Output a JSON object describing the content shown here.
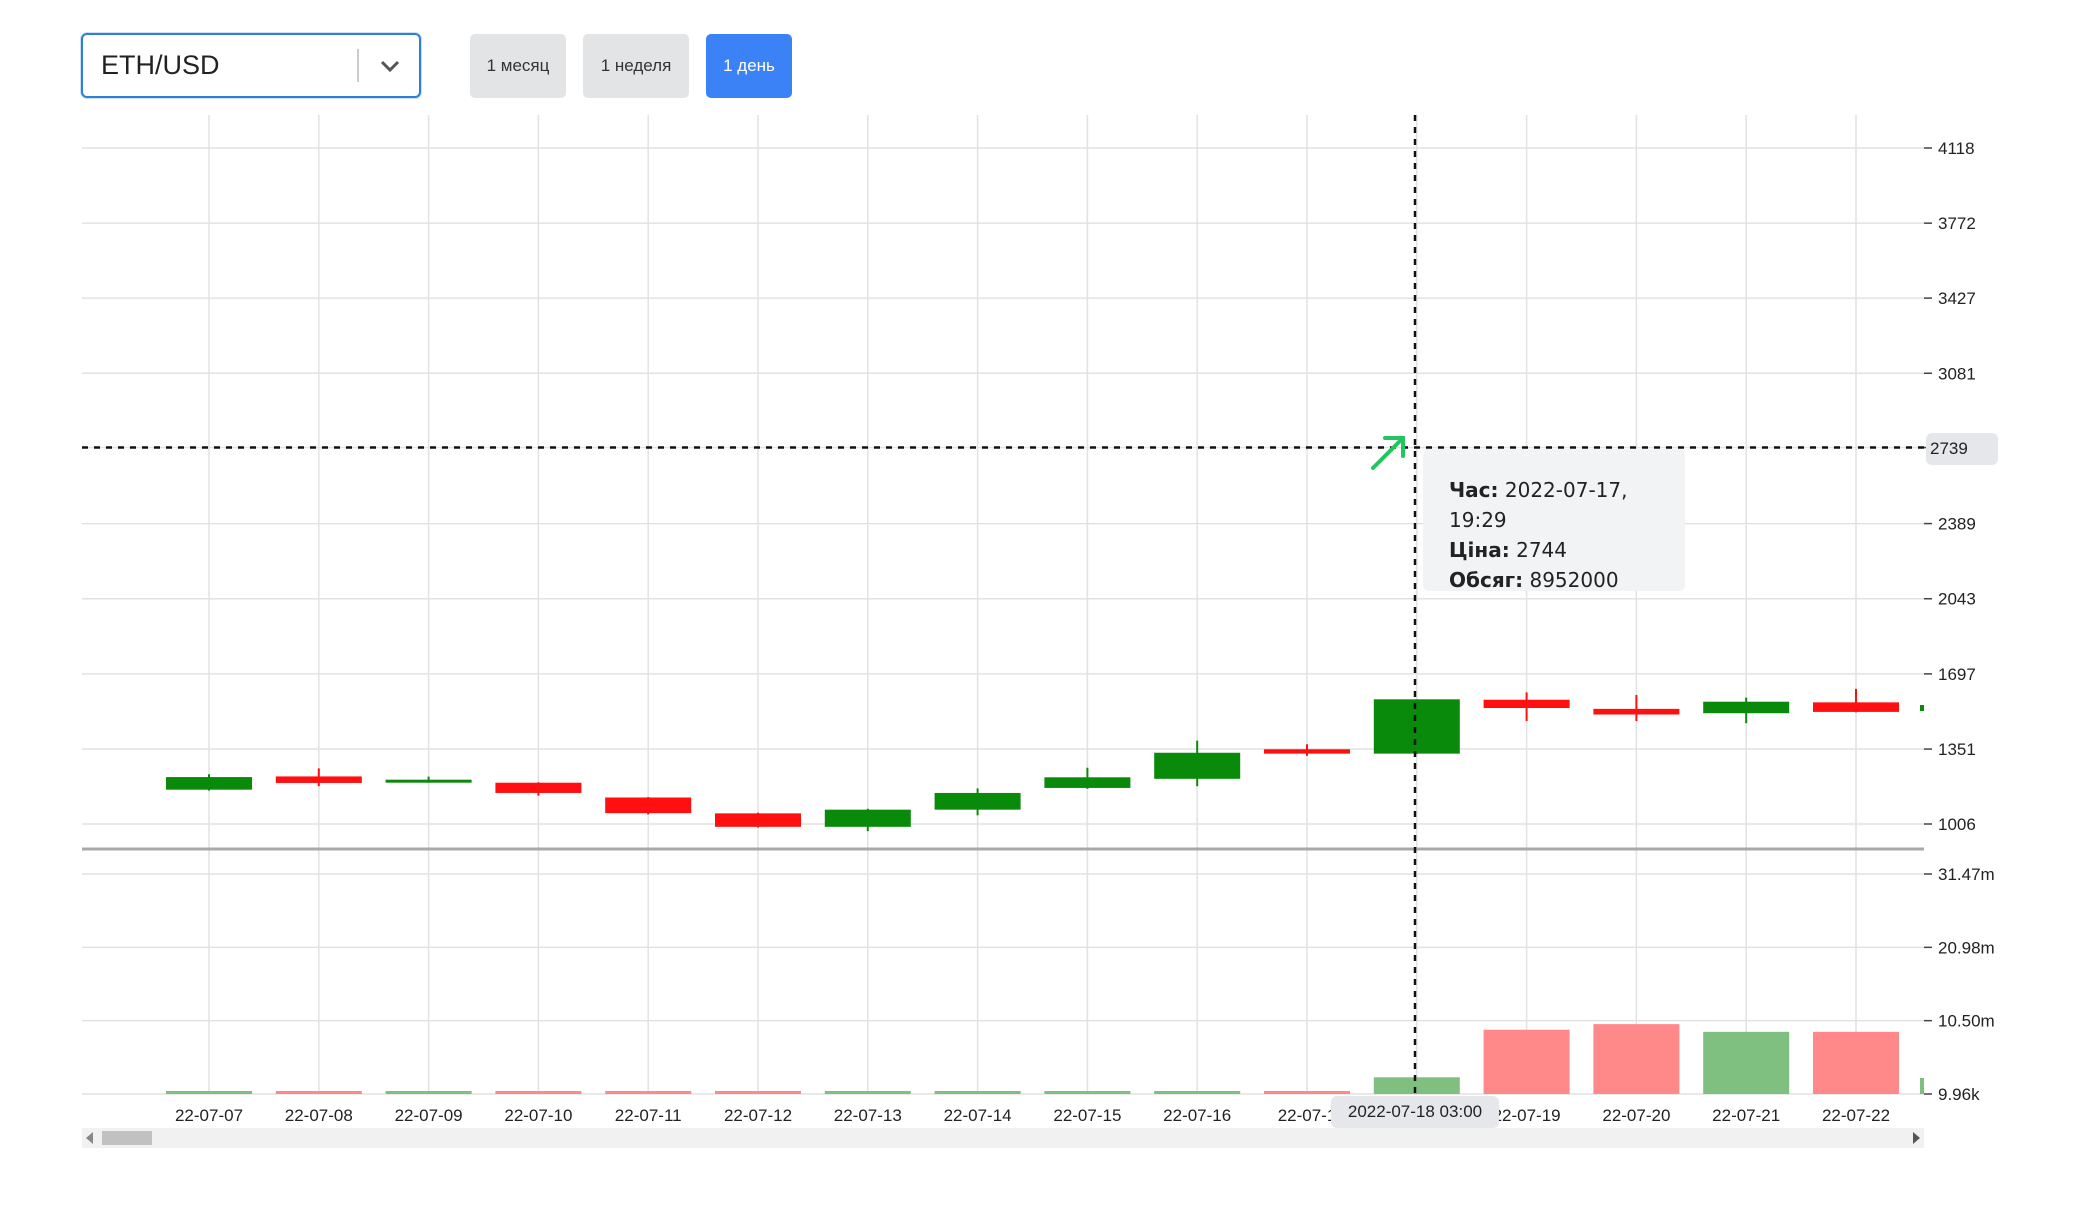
{
  "pair_selector": {
    "value": "ETH/USD",
    "icon": "chevron-down-icon"
  },
  "timeframes": [
    {
      "label": "1 месяц",
      "active": false
    },
    {
      "label": "1 неделя",
      "active": false
    },
    {
      "label": "1 день",
      "active": true
    }
  ],
  "colors": {
    "up": "#0a8a0a",
    "down": "#ff0f0f",
    "up_volume": "#7fbf7f",
    "down_volume": "#ff8888",
    "accent": "#3b82f6"
  },
  "tooltip": {
    "time_label": "Час:",
    "time_value": "2022-07-17, 19:29",
    "price_label": "Ціна:",
    "price_value": "2744",
    "volume_label": "Обсяг:",
    "volume_value": "8952000"
  },
  "crosshair": {
    "y_label": "2739",
    "x_label": "2022-07-18 03:00",
    "marker_icon": "arrow-up-right-icon"
  },
  "chart_data": {
    "type": "candlestick",
    "price_axis": {
      "ticks": [
        4118,
        3772,
        3427,
        3081,
        2739,
        2389,
        2043,
        1697,
        1351,
        1006
      ]
    },
    "volume_axis": {
      "ticks": [
        "31.47m",
        "20.98m",
        "10.50m",
        "9.96k"
      ]
    },
    "x_labels": [
      "22-07-07",
      "22-07-08",
      "22-07-09",
      "22-07-10",
      "22-07-11",
      "22-07-12",
      "22-07-13",
      "22-07-14",
      "22-07-15",
      "22-07-16",
      "22-07-1",
      "2022-07-18 03:00",
      "22-07-19",
      "22-07-20",
      "22-07-21",
      "22-07-22"
    ],
    "candles": [
      {
        "date": "22-07-07",
        "open": 1164,
        "close": 1222,
        "high": 1235,
        "low": 1160
      },
      {
        "date": "22-07-08",
        "open": 1225,
        "close": 1195,
        "high": 1262,
        "low": 1180
      },
      {
        "date": "22-07-09",
        "open": 1202,
        "close": 1210,
        "high": 1224,
        "low": 1196
      },
      {
        "date": "22-07-10",
        "open": 1196,
        "close": 1149,
        "high": 1198,
        "low": 1136
      },
      {
        "date": "22-07-11",
        "open": 1128,
        "close": 1056,
        "high": 1130,
        "low": 1050
      },
      {
        "date": "22-07-12",
        "open": 1055,
        "close": 993,
        "high": 1058,
        "low": 990
      },
      {
        "date": "22-07-13",
        "open": 993,
        "close": 1072,
        "high": 1076,
        "low": 973
      },
      {
        "date": "22-07-14",
        "open": 1072,
        "close": 1149,
        "high": 1170,
        "low": 1046
      },
      {
        "date": "22-07-15",
        "open": 1172,
        "close": 1221,
        "high": 1265,
        "low": 1168
      },
      {
        "date": "22-07-16",
        "open": 1214,
        "close": 1334,
        "high": 1390,
        "low": 1180
      },
      {
        "date": "22-07-17",
        "open": 1350,
        "close": 1330,
        "high": 1373,
        "low": 1320
      },
      {
        "date": "22-07-18",
        "open": 1330,
        "close": 1580,
        "high": 1580,
        "low": 1328
      },
      {
        "date": "22-07-19",
        "open": 1578,
        "close": 1540,
        "high": 1612,
        "low": 1480
      },
      {
        "date": "22-07-20",
        "open": 1536,
        "close": 1510,
        "high": 1600,
        "low": 1480
      },
      {
        "date": "22-07-21",
        "open": 1516,
        "close": 1569,
        "high": 1588,
        "low": 1470
      },
      {
        "date": "22-07-22",
        "open": 1566,
        "close": 1522,
        "high": 1628,
        "low": 1520
      }
    ],
    "volumes": [
      {
        "value": 60000,
        "dir": "up"
      },
      {
        "value": 60000,
        "dir": "down"
      },
      {
        "value": 30000,
        "dir": "up"
      },
      {
        "value": 20000,
        "dir": "down"
      },
      {
        "value": 20000,
        "dir": "down"
      },
      {
        "value": 20000,
        "dir": "down"
      },
      {
        "value": 30000,
        "dir": "up"
      },
      {
        "value": 20000,
        "dir": "up"
      },
      {
        "value": 20000,
        "dir": "up"
      },
      {
        "value": 20000,
        "dir": "up"
      },
      {
        "value": 300000,
        "dir": "down"
      },
      {
        "value": 2400000,
        "dir": "up"
      },
      {
        "value": 9200000,
        "dir": "down"
      },
      {
        "value": 10000000,
        "dir": "down"
      },
      {
        "value": 8900000,
        "dir": "up"
      },
      {
        "value": 8900000,
        "dir": "down"
      }
    ],
    "grid": true
  }
}
